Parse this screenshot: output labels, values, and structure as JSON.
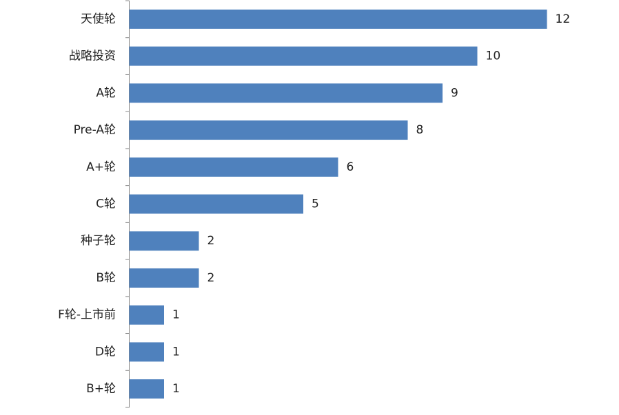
{
  "chart_data": {
    "type": "bar",
    "orientation": "horizontal",
    "categories": [
      "天使轮",
      "战略投资",
      "A轮",
      "Pre-A轮",
      "A+轮",
      "C轮",
      "种子轮",
      "B轮",
      "F轮-上市前",
      "D轮",
      "B+轮"
    ],
    "values": [
      12,
      10,
      9,
      8,
      6,
      5,
      2,
      2,
      1,
      1,
      1
    ],
    "color": "#4f81bd"
  }
}
